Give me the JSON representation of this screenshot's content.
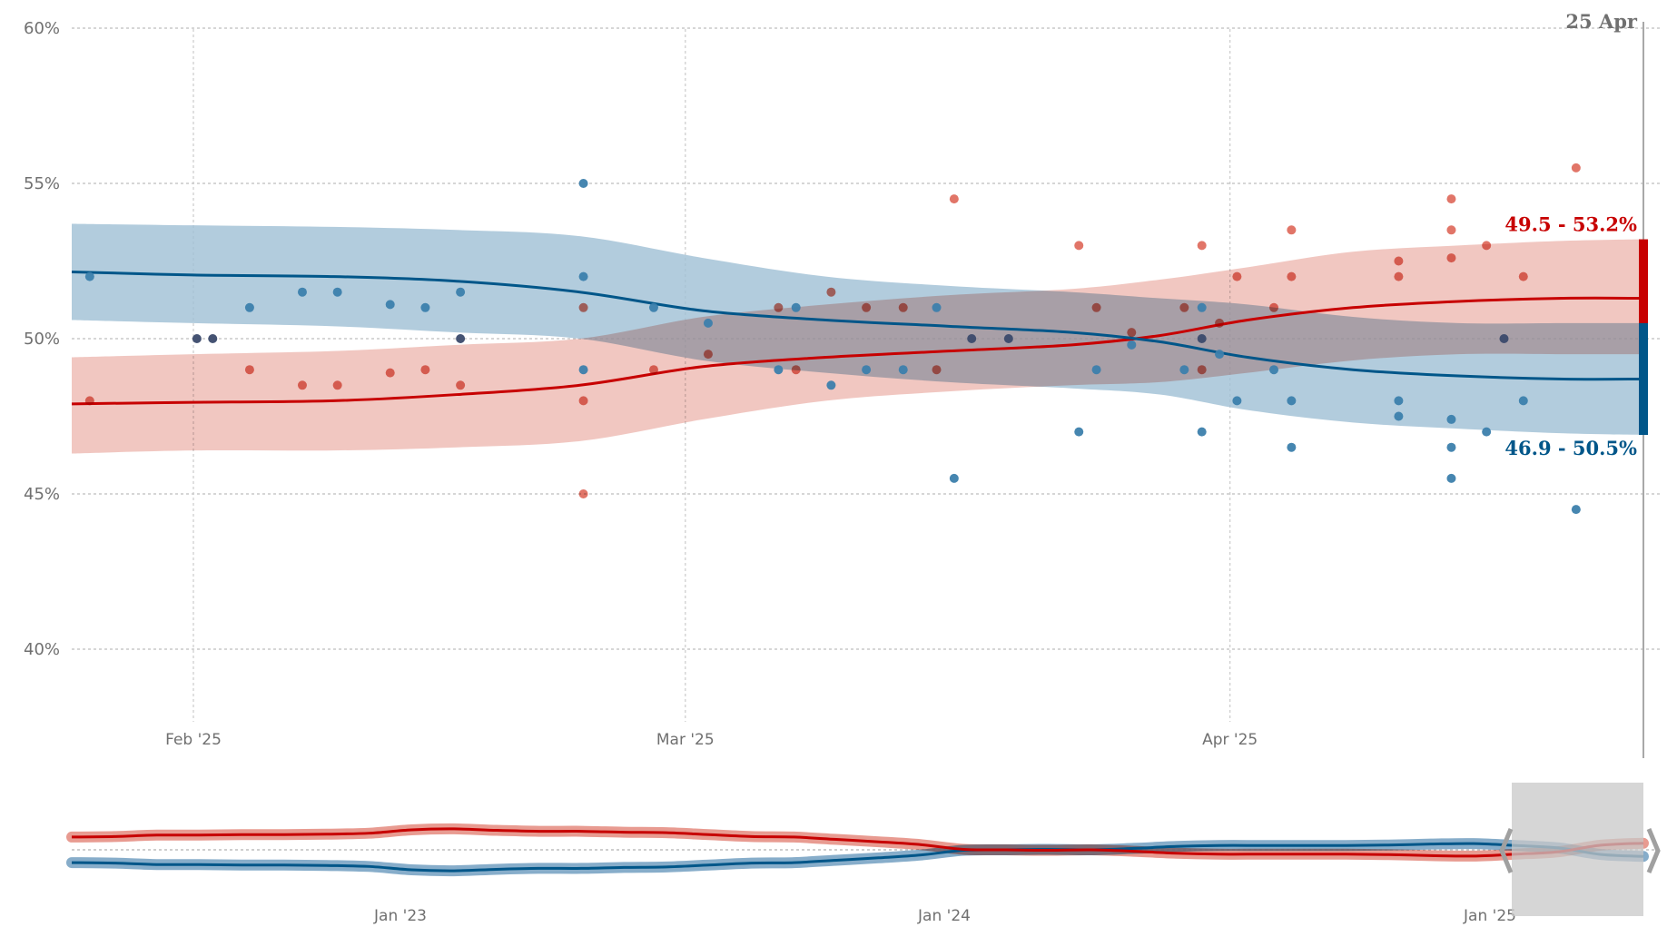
{
  "chart_data": {
    "type": "scatter",
    "title": "",
    "xlabel": "",
    "ylabel": "",
    "ylim": [
      37,
      60
    ],
    "y_ticks": [
      {
        "value": 60,
        "label": "60%"
      },
      {
        "value": 55,
        "label": "55%"
      },
      {
        "value": 50,
        "label": "50%"
      },
      {
        "value": 45,
        "label": "45%"
      },
      {
        "value": 40,
        "label": "40%"
      }
    ],
    "x_domain": {
      "start": "2025-01-25",
      "end": "2025-04-25"
    },
    "x_ticks": [
      {
        "date": "2025-02-01",
        "label": "Feb '25"
      },
      {
        "date": "2025-03-01",
        "label": "Mar '25"
      },
      {
        "date": "2025-04-01",
        "label": "Apr '25"
      }
    ],
    "current_date_label": "25 Apr",
    "grid": true,
    "colors": {
      "red": "#c70000",
      "red_band": "#e8a298",
      "red_dot": "#dc5d4d",
      "blue": "#005689",
      "blue_band": "#9fbfd4",
      "blue_dot": "#3c7fac",
      "overlap_dot": "#3b4a6b"
    },
    "series": [
      {
        "name": "red",
        "trend": [
          {
            "day": -7,
            "mid": 47.9,
            "lo": 46.3,
            "hi": 49.4
          },
          {
            "day": 0,
            "mid": 47.95,
            "lo": 46.4,
            "hi": 49.5
          },
          {
            "day": 8,
            "mid": 48.0,
            "lo": 46.4,
            "hi": 49.6
          },
          {
            "day": 15,
            "mid": 48.2,
            "lo": 46.5,
            "hi": 49.8
          },
          {
            "day": 22,
            "mid": 48.5,
            "lo": 46.7,
            "hi": 50.0
          },
          {
            "day": 29,
            "mid": 49.1,
            "lo": 47.4,
            "hi": 50.7
          },
          {
            "day": 36,
            "mid": 49.4,
            "lo": 48.0,
            "hi": 51.1
          },
          {
            "day": 43,
            "mid": 49.6,
            "lo": 48.3,
            "hi": 51.4
          },
          {
            "day": 50,
            "mid": 49.8,
            "lo": 48.5,
            "hi": 51.6
          },
          {
            "day": 55,
            "mid": 50.1,
            "lo": 48.6,
            "hi": 51.9
          },
          {
            "day": 60,
            "mid": 50.6,
            "lo": 48.9,
            "hi": 52.3
          },
          {
            "day": 66,
            "mid": 51.0,
            "lo": 49.3,
            "hi": 52.8
          },
          {
            "day": 72,
            "mid": 51.2,
            "lo": 49.5,
            "hi": 53.0
          },
          {
            "day": 78,
            "mid": 51.3,
            "lo": 49.5,
            "hi": 53.15
          },
          {
            "day": 83,
            "mid": 51.3,
            "lo": 49.5,
            "hi": 53.2
          }
        ],
        "polls": [
          [
            -5.9,
            48
          ],
          [
            0.2,
            50
          ],
          [
            1.1,
            50
          ],
          [
            3.2,
            49
          ],
          [
            6.2,
            48.5
          ],
          [
            8.2,
            48.5
          ],
          [
            11.2,
            48.9
          ],
          [
            13.2,
            49
          ],
          [
            15.2,
            50
          ],
          [
            15.2,
            48.5
          ],
          [
            22.2,
            45
          ],
          [
            22.2,
            48
          ],
          [
            22.2,
            51
          ],
          [
            26.2,
            49
          ],
          [
            29.3,
            49.5
          ],
          [
            33.3,
            51
          ],
          [
            34.3,
            49
          ],
          [
            36.3,
            51.5
          ],
          [
            38.3,
            51
          ],
          [
            40.4,
            51
          ],
          [
            42.3,
            49
          ],
          [
            43.3,
            54.5
          ],
          [
            44.3,
            50
          ],
          [
            46.4,
            50
          ],
          [
            50.4,
            53
          ],
          [
            51.4,
            51
          ],
          [
            53.4,
            50.2
          ],
          [
            56.4,
            51
          ],
          [
            57.4,
            53
          ],
          [
            57.4,
            49
          ],
          [
            57.4,
            50
          ],
          [
            58.4,
            50.5
          ],
          [
            59.4,
            52
          ],
          [
            61.5,
            51
          ],
          [
            62.5,
            53.5
          ],
          [
            62.5,
            52
          ],
          [
            68.6,
            52.5
          ],
          [
            68.6,
            52
          ],
          [
            71.6,
            54.5
          ],
          [
            71.6,
            53.5
          ],
          [
            71.6,
            52.6
          ],
          [
            73.6,
            53
          ],
          [
            74.6,
            50
          ],
          [
            75.7,
            52
          ],
          [
            78.7,
            55.5
          ]
        ],
        "range_label": "49.5 - 53.2%",
        "range": [
          49.5,
          53.2
        ]
      },
      {
        "name": "blue",
        "trend": [
          {
            "day": -7,
            "mid": 52.15,
            "lo": 50.6,
            "hi": 53.7
          },
          {
            "day": 0,
            "mid": 52.05,
            "lo": 50.5,
            "hi": 53.65
          },
          {
            "day": 8,
            "mid": 52.0,
            "lo": 50.4,
            "hi": 53.6
          },
          {
            "day": 15,
            "mid": 51.85,
            "lo": 50.2,
            "hi": 53.5
          },
          {
            "day": 22,
            "mid": 51.5,
            "lo": 50.0,
            "hi": 53.3
          },
          {
            "day": 29,
            "mid": 50.9,
            "lo": 49.3,
            "hi": 52.6
          },
          {
            "day": 36,
            "mid": 50.6,
            "lo": 48.9,
            "hi": 52.0
          },
          {
            "day": 43,
            "mid": 50.4,
            "lo": 48.6,
            "hi": 51.7
          },
          {
            "day": 50,
            "mid": 50.2,
            "lo": 48.4,
            "hi": 51.5
          },
          {
            "day": 55,
            "mid": 49.9,
            "lo": 48.2,
            "hi": 51.3
          },
          {
            "day": 60,
            "mid": 49.4,
            "lo": 47.7,
            "hi": 51.1
          },
          {
            "day": 66,
            "mid": 49.0,
            "lo": 47.3,
            "hi": 50.7
          },
          {
            "day": 72,
            "mid": 48.8,
            "lo": 47.1,
            "hi": 50.5
          },
          {
            "day": 78,
            "mid": 48.7,
            "lo": 46.95,
            "hi": 50.5
          },
          {
            "day": 83,
            "mid": 48.7,
            "lo": 46.9,
            "hi": 50.5
          }
        ],
        "polls": [
          [
            -5.9,
            52
          ],
          [
            0.2,
            50
          ],
          [
            1.1,
            50
          ],
          [
            3.2,
            51
          ],
          [
            6.2,
            51.5
          ],
          [
            8.2,
            51.5
          ],
          [
            11.2,
            51.1
          ],
          [
            13.2,
            51
          ],
          [
            15.2,
            50
          ],
          [
            15.2,
            51.5
          ],
          [
            22.2,
            55
          ],
          [
            22.2,
            52
          ],
          [
            22.2,
            49
          ],
          [
            26.2,
            51
          ],
          [
            29.3,
            50.5
          ],
          [
            33.3,
            49
          ],
          [
            34.3,
            51
          ],
          [
            36.3,
            48.5
          ],
          [
            38.3,
            49
          ],
          [
            40.4,
            49
          ],
          [
            42.3,
            51
          ],
          [
            43.3,
            45.5
          ],
          [
            44.3,
            50
          ],
          [
            46.4,
            50
          ],
          [
            50.4,
            47
          ],
          [
            51.4,
            49
          ],
          [
            53.4,
            49.8
          ],
          [
            56.4,
            49
          ],
          [
            57.4,
            47
          ],
          [
            57.4,
            51
          ],
          [
            57.4,
            50
          ],
          [
            58.4,
            49.5
          ],
          [
            59.4,
            48
          ],
          [
            61.5,
            49
          ],
          [
            62.5,
            46.5
          ],
          [
            62.5,
            48
          ],
          [
            68.6,
            47.5
          ],
          [
            68.6,
            48
          ],
          [
            71.6,
            45.5
          ],
          [
            71.6,
            46.5
          ],
          [
            71.6,
            47.4
          ],
          [
            73.6,
            47
          ],
          [
            74.6,
            50
          ],
          [
            75.7,
            48
          ],
          [
            78.7,
            44.5
          ]
        ],
        "range_label": "46.9 - 50.5%",
        "range": [
          46.9,
          50.5
        ]
      }
    ],
    "overview": {
      "x_ticks": [
        {
          "label": "Jan '23"
        },
        {
          "label": "Jan '24"
        },
        {
          "label": "Jan '25"
        }
      ],
      "red_lead": [
        2.1,
        2.2,
        2.5,
        2.5,
        2.6,
        2.6,
        2.7,
        2.9,
        3.6,
        3.8,
        3.5,
        3.3,
        3.3,
        3.1,
        3.0,
        2.6,
        2.2,
        2.1,
        1.6,
        1.1,
        0.5,
        0.1,
        0.0,
        -0.1,
        0.0,
        -0.3,
        -0.7,
        -0.9,
        -0.9,
        -0.9,
        -0.9,
        -1.0,
        -1.2,
        -1.3,
        -0.9,
        -0.4,
        0.4,
        0.8
      ],
      "brush": {
        "start_fraction": 0.905,
        "end_fraction": 1.0
      }
    }
  }
}
